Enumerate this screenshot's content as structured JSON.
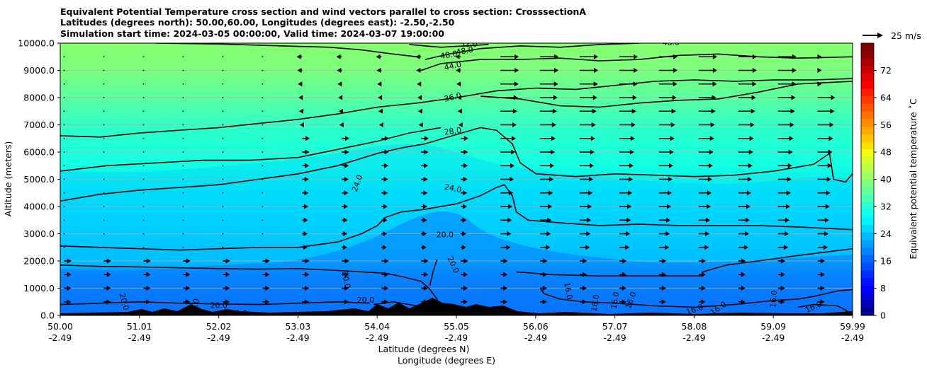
{
  "chart_data": {
    "type": "heatmap",
    "title_lines": [
      "Equivalent Potential Temperature cross section and wind vectors parallel to cross section: CrosssectionA",
      "Latitudes (degrees north): 50.00,60.00, Longitudes (degrees east): -2.50,-2.50",
      "Simulation start time: 2024-03-05 00:00:00, Valid time: 2024-03-07 19:00:00"
    ],
    "ylabel": "Altitude (meters)",
    "xlabel_line1": "Latitude (degrees N)",
    "xlabel_line2": "Longitude (degrees E)",
    "xlim": [
      50.0,
      59.99
    ],
    "ylim": [
      0,
      10000
    ],
    "y_ticks": [
      0,
      1000,
      2000,
      3000,
      4000,
      5000,
      6000,
      7000,
      8000,
      9000,
      10000
    ],
    "y_tick_labels": [
      "0.0",
      "1000.0",
      "2000.0",
      "3000.0",
      "4000.0",
      "5000.0",
      "6000.0",
      "7000.0",
      "8000.0",
      "9000.0",
      "10000.0"
    ],
    "x_ticks": [
      {
        "lat": "50.00",
        "lon": "-2.49"
      },
      {
        "lat": "51.01",
        "lon": "-2.49"
      },
      {
        "lat": "52.02",
        "lon": "-2.49"
      },
      {
        "lat": "53.03",
        "lon": "-2.49"
      },
      {
        "lat": "54.04",
        "lon": "-2.49"
      },
      {
        "lat": "55.05",
        "lon": "-2.49"
      },
      {
        "lat": "56.06",
        "lon": "-2.49"
      },
      {
        "lat": "57.07",
        "lon": "-2.49"
      },
      {
        "lat": "58.08",
        "lon": "-2.49"
      },
      {
        "lat": "59.09",
        "lon": "-2.49"
      },
      {
        "lat": "59.99",
        "lon": "-2.49"
      }
    ],
    "grid": "horizontal",
    "colorbar": {
      "label": "Equivalent potential temperature ˚C",
      "range": [
        0,
        80
      ],
      "ticks": [
        0,
        8,
        16,
        24,
        32,
        40,
        48,
        56,
        64,
        72
      ],
      "tick_labels": [
        "0",
        "8",
        "16",
        "24",
        "32",
        "40",
        "48",
        "56",
        "64",
        "72"
      ]
    },
    "quiver_key": {
      "label": "25 m/s",
      "placement": "top-right"
    },
    "contour_labels": [
      {
        "text": "52.0",
        "lat": 55.15,
        "alt": 9950,
        "angle": 0
      },
      {
        "text": "48.0",
        "lat": 55.1,
        "alt": 9700,
        "angle": -10
      },
      {
        "text": "48.0",
        "lat": 54.9,
        "alt": 9550,
        "angle": -10
      },
      {
        "text": "48.0",
        "lat": 57.7,
        "alt": 10000,
        "angle": 0
      },
      {
        "text": "44.0",
        "lat": 54.95,
        "alt": 9150,
        "angle": -12
      },
      {
        "text": "36.0",
        "lat": 54.95,
        "alt": 8000,
        "angle": -14
      },
      {
        "text": "28.0",
        "lat": 54.95,
        "alt": 6750,
        "angle": -8
      },
      {
        "text": "24.0",
        "lat": 53.75,
        "alt": 4850,
        "angle": -70
      },
      {
        "text": "24.0",
        "lat": 54.95,
        "alt": 4650,
        "angle": 12
      },
      {
        "text": "20.0",
        "lat": 54.85,
        "alt": 2950,
        "angle": 0
      },
      {
        "text": "20.0",
        "lat": 54.95,
        "alt": 1850,
        "angle": 65
      },
      {
        "text": "20.0",
        "lat": 53.6,
        "alt": 1300,
        "angle": 80
      },
      {
        "text": "20.0",
        "lat": 53.85,
        "alt": 550,
        "angle": 0
      },
      {
        "text": "20.0",
        "lat": 52.0,
        "alt": 350,
        "angle": 0
      },
      {
        "text": "20.0",
        "lat": 51.7,
        "alt": 300,
        "angle": -75
      },
      {
        "text": "20.0",
        "lat": 50.8,
        "alt": 500,
        "angle": 75
      },
      {
        "text": "20.0",
        "lat": 52.25,
        "alt": 60,
        "angle": 0
      },
      {
        "text": "16.0",
        "lat": 56.4,
        "alt": 900,
        "angle": 80
      },
      {
        "text": "16.0",
        "lat": 56.75,
        "alt": 450,
        "angle": -80
      },
      {
        "text": "16.0",
        "lat": 57.0,
        "alt": 550,
        "angle": -80
      },
      {
        "text": "16.0",
        "lat": 57.2,
        "alt": 550,
        "angle": -70
      },
      {
        "text": "16.0",
        "lat": 58.0,
        "alt": 200,
        "angle": -20
      },
      {
        "text": "16.0",
        "lat": 58.3,
        "alt": 250,
        "angle": -35
      },
      {
        "text": "16.0",
        "lat": 59.0,
        "alt": 600,
        "angle": -85
      },
      {
        "text": "16.0",
        "lat": 59.5,
        "alt": 300,
        "angle": -25
      }
    ],
    "contour_lines": [
      {
        "level": 20,
        "points": [
          [
            50.0,
            1850
          ],
          [
            50.5,
            1800
          ],
          [
            51.0,
            1780
          ],
          [
            51.5,
            1750
          ],
          [
            52.0,
            1720
          ],
          [
            52.5,
            1700
          ],
          [
            53.0,
            1720
          ],
          [
            53.5,
            1650
          ],
          [
            53.8,
            1600
          ],
          [
            54.1,
            1550
          ],
          [
            54.35,
            1400
          ],
          [
            54.55,
            1250
          ],
          [
            54.65,
            1000
          ],
          [
            54.75,
            600
          ],
          [
            54.8,
            150
          ]
        ]
      },
      {
        "level": 20,
        "points": [
          [
            54.75,
            2050
          ],
          [
            54.7,
            1600
          ],
          [
            54.66,
            1100
          ]
        ]
      },
      {
        "level": 20,
        "points": [
          [
            53.95,
            400
          ],
          [
            54.2,
            500
          ],
          [
            54.5,
            350
          ],
          [
            54.7,
            200
          ]
        ]
      },
      {
        "level": 20,
        "points": [
          [
            50.0,
            400
          ],
          [
            50.5,
            450
          ],
          [
            51.0,
            500
          ],
          [
            51.5,
            450
          ],
          [
            52.0,
            420
          ],
          [
            52.5,
            400
          ],
          [
            53.0,
            450
          ],
          [
            53.5,
            500
          ],
          [
            53.9,
            450
          ]
        ]
      },
      {
        "level": 24,
        "points": [
          [
            50.0,
            2550
          ],
          [
            50.5,
            2500
          ],
          [
            51.0,
            2450
          ],
          [
            51.5,
            2400
          ],
          [
            52.0,
            2450
          ],
          [
            52.5,
            2500
          ],
          [
            53.0,
            2500
          ],
          [
            53.5,
            2700
          ],
          [
            53.8,
            3000
          ],
          [
            54.0,
            3300
          ],
          [
            54.1,
            3600
          ],
          [
            54.3,
            3800
          ],
          [
            54.6,
            3900
          ],
          [
            55.0,
            4100
          ],
          [
            55.3,
            4400
          ],
          [
            55.5,
            4700
          ],
          [
            55.6,
            4800
          ],
          [
            55.7,
            4400
          ],
          [
            55.75,
            3800
          ],
          [
            55.9,
            3500
          ],
          [
            56.3,
            3400
          ],
          [
            56.8,
            3300
          ],
          [
            57.3,
            3350
          ],
          [
            57.8,
            3300
          ],
          [
            58.3,
            3300
          ],
          [
            58.8,
            3300
          ],
          [
            59.3,
            3250
          ],
          [
            59.99,
            3150
          ]
        ]
      },
      {
        "level": 24,
        "points": [
          [
            55.75,
            1600
          ],
          [
            56.2,
            1500
          ],
          [
            56.8,
            1450
          ],
          [
            57.3,
            1450
          ],
          [
            57.8,
            1450
          ],
          [
            58.1,
            1450
          ],
          [
            58.1,
            1600
          ],
          [
            58.4,
            1850
          ],
          [
            58.8,
            2000
          ],
          [
            59.3,
            2200
          ],
          [
            59.99,
            2450
          ]
        ]
      },
      {
        "level": 28,
        "points": [
          [
            50.0,
            4200
          ],
          [
            50.5,
            4450
          ],
          [
            51.0,
            4600
          ],
          [
            51.5,
            4700
          ],
          [
            52.0,
            4800
          ],
          [
            52.5,
            5000
          ],
          [
            53.0,
            5200
          ],
          [
            53.5,
            5500
          ],
          [
            54.0,
            5950
          ],
          [
            54.3,
            6150
          ],
          [
            54.6,
            6300
          ],
          [
            55.0,
            6650
          ],
          [
            55.3,
            6900
          ],
          [
            55.5,
            6800
          ],
          [
            55.7,
            6300
          ],
          [
            55.8,
            5600
          ],
          [
            56.0,
            5200
          ],
          [
            56.5,
            5100
          ],
          [
            57.0,
            5200
          ],
          [
            57.5,
            5150
          ],
          [
            58.0,
            5100
          ],
          [
            58.5,
            5150
          ],
          [
            59.0,
            5300
          ],
          [
            59.5,
            5550
          ],
          [
            59.7,
            5950
          ],
          [
            59.75,
            5000
          ],
          [
            59.9,
            4900
          ],
          [
            59.99,
            5200
          ]
        ]
      },
      {
        "level": 28,
        "points": [
          [
            50.0,
            5300
          ],
          [
            50.6,
            5500
          ],
          [
            51.2,
            5600
          ],
          [
            51.8,
            5700
          ],
          [
            52.4,
            5700
          ],
          [
            53.0,
            5800
          ],
          [
            53.5,
            6100
          ],
          [
            54.0,
            6400
          ],
          [
            54.4,
            6700
          ],
          [
            54.8,
            6900
          ]
        ]
      },
      {
        "level": 32,
        "points": [
          [
            50.0,
            6600
          ],
          [
            50.5,
            6550
          ],
          [
            51.0,
            6700
          ],
          [
            51.5,
            6800
          ],
          [
            52.0,
            6900
          ],
          [
            52.5,
            7050
          ],
          [
            53.0,
            7200
          ],
          [
            53.5,
            7400
          ],
          [
            54.0,
            7650
          ],
          [
            54.5,
            7800
          ],
          [
            55.0,
            8000
          ],
          [
            55.5,
            8250
          ],
          [
            56.0,
            8350
          ],
          [
            56.5,
            8300
          ],
          [
            57.0,
            8450
          ],
          [
            57.5,
            8600
          ],
          [
            58.0,
            8650
          ],
          [
            58.5,
            8600
          ],
          [
            59.0,
            8650
          ],
          [
            59.5,
            8650
          ],
          [
            59.99,
            8700
          ]
        ]
      },
      {
        "level": 36,
        "points": [
          [
            55.3,
            8050
          ],
          [
            55.8,
            7950
          ],
          [
            56.3,
            7700
          ],
          [
            56.8,
            7650
          ],
          [
            57.3,
            7800
          ],
          [
            57.8,
            7900
          ],
          [
            58.3,
            7950
          ],
          [
            58.8,
            8200
          ],
          [
            59.3,
            8500
          ],
          [
            59.99,
            8600
          ]
        ]
      },
      {
        "level": 44,
        "points": [
          [
            54.55,
            9000
          ],
          [
            54.8,
            9250
          ],
          [
            55.3,
            9400
          ],
          [
            55.8,
            9400
          ],
          [
            56.3,
            9450
          ],
          [
            56.8,
            9350
          ],
          [
            57.3,
            9400
          ],
          [
            57.8,
            9550
          ],
          [
            58.3,
            9600
          ],
          [
            58.8,
            9500
          ],
          [
            59.3,
            9450
          ],
          [
            59.99,
            9500
          ]
        ]
      },
      {
        "level": 48,
        "points": [
          [
            54.6,
            9400
          ],
          [
            54.9,
            9600
          ],
          [
            55.3,
            9800
          ],
          [
            55.8,
            9900
          ],
          [
            56.3,
            9850
          ],
          [
            56.8,
            9950
          ],
          [
            57.3,
            10000
          ]
        ]
      },
      {
        "level": 52,
        "points": [
          [
            54.4,
            9950
          ],
          [
            54.8,
            9850
          ],
          [
            55.1,
            9900
          ],
          [
            55.4,
            9950
          ]
        ]
      },
      {
        "level": 52,
        "points": [
          [
            51.2,
            10000
          ],
          [
            52.0,
            9970
          ],
          [
            52.8,
            9900
          ],
          [
            53.4,
            9850
          ],
          [
            53.8,
            9750
          ],
          [
            54.2,
            9600
          ],
          [
            54.5,
            9500
          ]
        ]
      },
      {
        "level": 16,
        "points": [
          [
            56.05,
            1000
          ],
          [
            56.1,
            800
          ],
          [
            56.3,
            600
          ],
          [
            56.6,
            500
          ],
          [
            57.0,
            450
          ],
          [
            57.5,
            350
          ],
          [
            58.0,
            300
          ],
          [
            58.5,
            400
          ],
          [
            59.0,
            550
          ],
          [
            59.3,
            600
          ],
          [
            59.5,
            700
          ],
          [
            59.8,
            900
          ],
          [
            59.99,
            950
          ]
        ]
      },
      {
        "level": 16,
        "points": [
          [
            59.99,
            0
          ],
          [
            59.9,
            200
          ],
          [
            59.8,
            350
          ],
          [
            59.5,
            400
          ],
          [
            59.3,
            300
          ]
        ]
      }
    ]
  }
}
